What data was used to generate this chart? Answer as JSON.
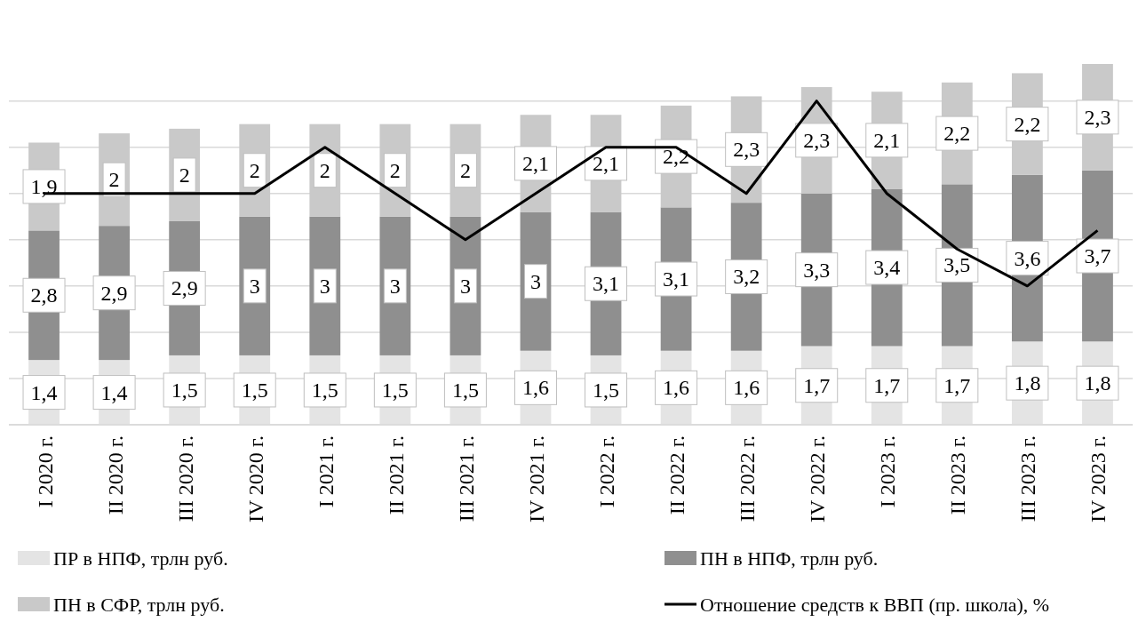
{
  "chart_data": {
    "type": "bar",
    "stacked": true,
    "categories": [
      "I 2020 г.",
      "II 2020 г.",
      "III 2020 г.",
      "IV 2020 г.",
      "I 2021 г.",
      "II 2021 г.",
      "III 2021 г.",
      "IV 2021 г.",
      "I 2022 г.",
      "II 2022 г.",
      "III 2022 г.",
      "IV 2022 г.",
      "I 2023 г.",
      "II 2023 г.",
      "III 2023 г.",
      "IV 2023 г."
    ],
    "grid": "y",
    "tick_labels": "x",
    "legend": "bottom",
    "series": [
      {
        "name": "ПР в НПФ, трлн руб.",
        "color": "#e4e4e4",
        "values": [
          1.4,
          1.4,
          1.5,
          1.5,
          1.5,
          1.5,
          1.5,
          1.6,
          1.5,
          1.6,
          1.6,
          1.7,
          1.7,
          1.7,
          1.8,
          1.8
        ],
        "value_labels": [
          "1,4",
          "1,4",
          "1,5",
          "1,5",
          "1,5",
          "1,5",
          "1,5",
          "1,6",
          "1,5",
          "1,6",
          "1,6",
          "1,7",
          "1,7",
          "1,7",
          "1,8",
          "1,8"
        ]
      },
      {
        "name": "ПН в НПФ, трлн руб.",
        "color": "#8f8f8f",
        "values": [
          2.8,
          2.9,
          2.9,
          3,
          3,
          3,
          3,
          3,
          3.1,
          3.1,
          3.2,
          3.3,
          3.4,
          3.5,
          3.6,
          3.7
        ],
        "value_labels": [
          "2,8",
          "2,9",
          "2,9",
          "3",
          "3",
          "3",
          "3",
          "3",
          "3,1",
          "3,1",
          "3,2",
          "3,3",
          "3,4",
          "3,5",
          "3,6",
          "3,7"
        ]
      },
      {
        "name": "ПН в СФР, трлн руб.",
        "color": "#c9c9c9",
        "values": [
          1.9,
          2,
          2,
          2,
          2,
          2,
          2,
          2.1,
          2.1,
          2.2,
          2.3,
          2.3,
          2.1,
          2.2,
          2.2,
          2.3
        ],
        "value_labels": [
          "1,9",
          "2",
          "2",
          "2",
          "2",
          "2",
          "2",
          "2,1",
          "2,1",
          "2,2",
          "2,3",
          "2,3",
          "2,1",
          "2,2",
          "2,2",
          "2,3"
        ]
      },
      {
        "name": "Отношение средств к ВВП (пр. школа), %",
        "type": "line",
        "color": "#000000",
        "values": [
          5,
          5,
          5,
          5,
          6,
          5,
          4,
          5,
          6,
          6,
          5,
          7,
          5,
          3.8,
          3,
          4.2
        ]
      }
    ]
  }
}
